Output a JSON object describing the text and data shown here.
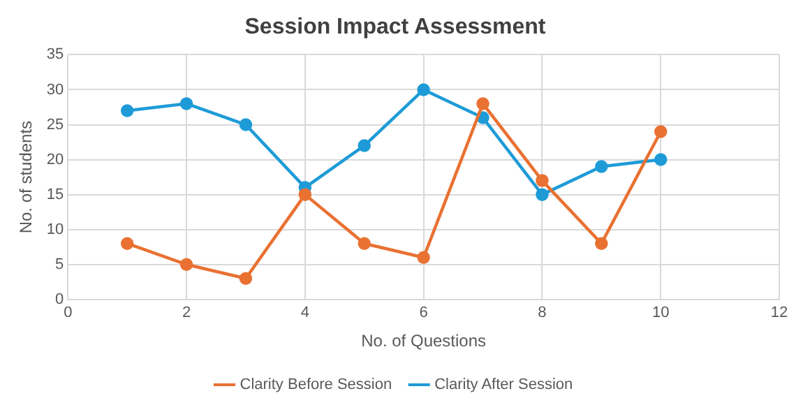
{
  "chart_data": {
    "type": "line",
    "title": "Session Impact Assessment",
    "xlabel": "No. of Questions",
    "ylabel": "No. of students",
    "x": [
      1,
      2,
      3,
      4,
      5,
      6,
      7,
      8,
      9,
      10
    ],
    "series": [
      {
        "name": "Clarity Before Session",
        "color": "#e97132",
        "values": [
          8,
          5,
          3,
          15,
          8,
          6,
          28,
          17,
          8,
          24
        ]
      },
      {
        "name": "Clarity After Session",
        "color": "#1e9bd7",
        "values": [
          27,
          28,
          25,
          16,
          22,
          30,
          26,
          15,
          19,
          20
        ]
      }
    ],
    "xlim": [
      0,
      12
    ],
    "xticks": [
      0,
      2,
      4,
      6,
      8,
      10,
      12
    ],
    "ylim": [
      0,
      35
    ],
    "yticks": [
      0,
      5,
      10,
      15,
      20,
      25,
      30,
      35
    ],
    "grid": true,
    "legend": "bottom",
    "marker": "circle",
    "line_style": "solid"
  }
}
